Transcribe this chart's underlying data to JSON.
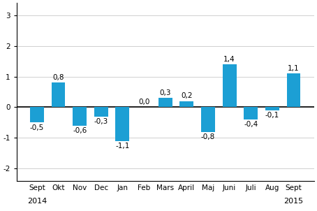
{
  "categories": [
    "Sept",
    "Okt",
    "Nov",
    "Dec",
    "Jan",
    "Feb",
    "Mars",
    "April",
    "Maj",
    "Juni",
    "Juli",
    "Aug",
    "Sept"
  ],
  "values": [
    -0.5,
    0.8,
    -0.6,
    -0.3,
    -1.1,
    0.0,
    0.3,
    0.2,
    -0.8,
    1.4,
    -0.4,
    -0.1,
    1.1
  ],
  "bar_color": "#1c9fd4",
  "ylim": [
    -2.4,
    3.4
  ],
  "yticks": [
    -2,
    -1,
    0,
    1,
    2,
    3
  ],
  "tick_fontsize": 7.5,
  "year_fontsize": 8,
  "value_fontsize": 7.5,
  "bar_width": 0.65,
  "background_color": "#ffffff",
  "grid_color": "#d0d0d0",
  "zero_line_color": "#000000",
  "year_2014": "2014",
  "year_2015": "2015",
  "year_2014_idx": 0,
  "year_2015_idx": 12
}
